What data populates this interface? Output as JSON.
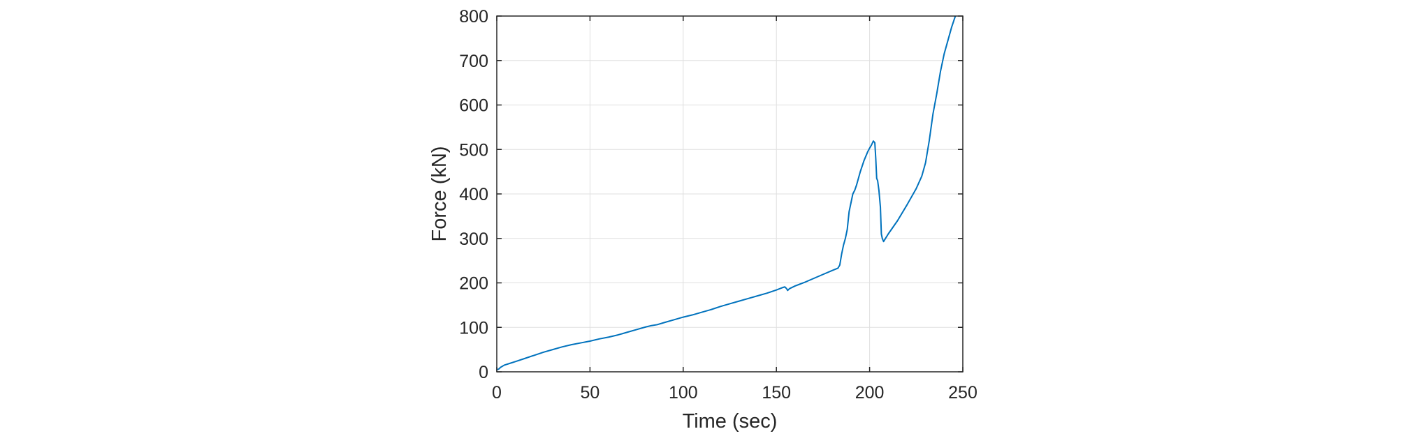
{
  "chart_data": {
    "type": "line",
    "title": "",
    "xlabel": "Time (sec)",
    "ylabel": "Force (kN)",
    "xlim": [
      0,
      250
    ],
    "ylim": [
      0,
      800
    ],
    "xticks": [
      0,
      50,
      100,
      150,
      200,
      250
    ],
    "yticks": [
      0,
      100,
      200,
      300,
      400,
      500,
      600,
      700,
      800
    ],
    "grid": true,
    "legend": null,
    "series": [
      {
        "name": "Force",
        "color": "#0072BD",
        "x": [
          0,
          1,
          2,
          4,
          7,
          10,
          15,
          20,
          25,
          30,
          35,
          40,
          45,
          50,
          55,
          60,
          65,
          70,
          75,
          80,
          83,
          86,
          90,
          95,
          100,
          105,
          110,
          115,
          120,
          125,
          130,
          135,
          140,
          145,
          150,
          153,
          154.5,
          155.5,
          156,
          157,
          160,
          165,
          170,
          175,
          180,
          183,
          184,
          185,
          186,
          187,
          188,
          189,
          190,
          191,
          192,
          193,
          195,
          197,
          199,
          200,
          201,
          202,
          202.8,
          203.3,
          203.8,
          204.3,
          205,
          205.8,
          206.3,
          206.8,
          207.5,
          210,
          215,
          220,
          225,
          228,
          230,
          232,
          234,
          236,
          238,
          240,
          242,
          244,
          246
        ],
        "y": [
          5,
          6,
          10,
          15,
          19,
          23,
          30,
          37,
          44,
          50,
          56,
          61,
          65,
          69,
          74,
          78,
          83,
          89,
          95,
          101,
          104,
          106,
          111,
          117,
          123,
          128,
          134,
          140,
          147,
          153,
          159,
          165,
          171,
          177,
          184,
          189,
          191,
          187,
          183,
          187,
          193,
          201,
          210,
          219,
          228,
          233,
          240,
          265,
          285,
          300,
          320,
          360,
          380,
          400,
          408,
          420,
          450,
          475,
          495,
          503,
          510,
          519,
          515,
          480,
          435,
          430,
          408,
          370,
          310,
          300,
          293,
          310,
          340,
          375,
          412,
          440,
          470,
          520,
          580,
          625,
          675,
          715,
          745,
          775,
          800
        ]
      }
    ]
  },
  "axes": {
    "x_label": "Time (sec)",
    "y_label": "Force (kN)",
    "x_tick_labels": [
      "0",
      "50",
      "100",
      "150",
      "200",
      "250"
    ],
    "y_tick_labels": [
      "0",
      "100",
      "200",
      "300",
      "400",
      "500",
      "600",
      "700",
      "800"
    ]
  },
  "colors": {
    "line": "#0072BD",
    "axis": "#262626",
    "grid": "#dfdfdf",
    "background": "#ffffff"
  }
}
